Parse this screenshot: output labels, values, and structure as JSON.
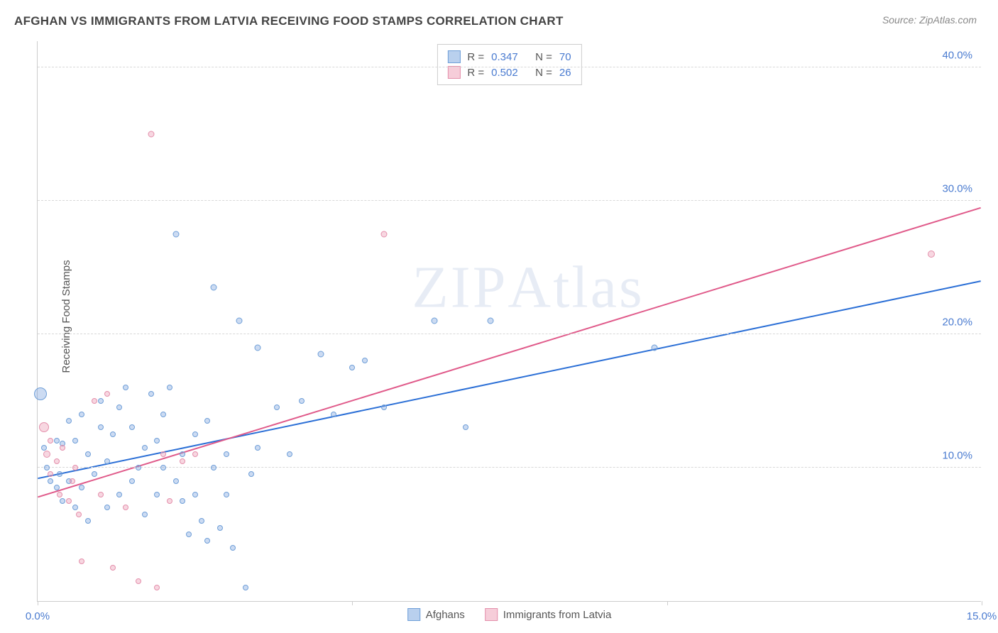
{
  "header": {
    "title": "AFGHAN VS IMMIGRANTS FROM LATVIA RECEIVING FOOD STAMPS CORRELATION CHART",
    "source": "Source: ZipAtlas.com"
  },
  "chart": {
    "type": "scatter",
    "ylabel": "Receiving Food Stamps",
    "watermark": "ZIPAtlas",
    "xlim": [
      0,
      15
    ],
    "ylim": [
      0,
      42
    ],
    "x_ticks": [
      0,
      5,
      10,
      15
    ],
    "x_tick_labels": [
      "0.0%",
      "",
      "",
      "15.0%"
    ],
    "y_ticks": [
      10,
      20,
      30,
      40
    ],
    "y_tick_labels": [
      "10.0%",
      "20.0%",
      "30.0%",
      "40.0%"
    ],
    "grid_color": "#d8d8d8",
    "axis_color": "#cccccc",
    "background_color": "#ffffff",
    "tick_label_color": "#4a7bd0",
    "series": [
      {
        "name": "Afghans",
        "color_fill": "rgba(120,160,220,0.38)",
        "color_stroke": "#6f9fd8",
        "swatch_fill": "#b9d0ee",
        "swatch_border": "#6f9fd8",
        "R": 0.347,
        "N": 70,
        "trend": {
          "x1": 0,
          "y1": 9.2,
          "x2": 15,
          "y2": 24.0,
          "color": "#2b6fd6",
          "width": 2
        },
        "points": [
          [
            0.05,
            15.5,
            18
          ],
          [
            0.1,
            11.5,
            8
          ],
          [
            0.15,
            10.0,
            8
          ],
          [
            0.2,
            9.0,
            8
          ],
          [
            0.3,
            12.0,
            8
          ],
          [
            0.3,
            8.5,
            8
          ],
          [
            0.35,
            9.5,
            8
          ],
          [
            0.4,
            11.8,
            8
          ],
          [
            0.4,
            7.5,
            8
          ],
          [
            0.5,
            13.5,
            8
          ],
          [
            0.5,
            9.0,
            8
          ],
          [
            0.6,
            12.0,
            8
          ],
          [
            0.6,
            7.0,
            8
          ],
          [
            0.7,
            14.0,
            8
          ],
          [
            0.7,
            8.5,
            8
          ],
          [
            0.8,
            11.0,
            8
          ],
          [
            0.8,
            6.0,
            8
          ],
          [
            0.9,
            9.5,
            8
          ],
          [
            1.0,
            13.0,
            8
          ],
          [
            1.0,
            15.0,
            8
          ],
          [
            1.1,
            10.5,
            8
          ],
          [
            1.1,
            7.0,
            8
          ],
          [
            1.2,
            12.5,
            8
          ],
          [
            1.3,
            8.0,
            8
          ],
          [
            1.3,
            14.5,
            8
          ],
          [
            1.4,
            16.0,
            8
          ],
          [
            1.5,
            9.0,
            8
          ],
          [
            1.5,
            13.0,
            8
          ],
          [
            1.6,
            10.0,
            8
          ],
          [
            1.7,
            11.5,
            8
          ],
          [
            1.7,
            6.5,
            8
          ],
          [
            1.8,
            15.5,
            8
          ],
          [
            1.9,
            12.0,
            8
          ],
          [
            1.9,
            8.0,
            8
          ],
          [
            2.0,
            10.0,
            8
          ],
          [
            2.0,
            14.0,
            8
          ],
          [
            2.1,
            16.0,
            8
          ],
          [
            2.2,
            9.0,
            8
          ],
          [
            2.2,
            27.5,
            9
          ],
          [
            2.3,
            7.5,
            8
          ],
          [
            2.3,
            11.0,
            8
          ],
          [
            2.4,
            5.0,
            8
          ],
          [
            2.5,
            12.5,
            8
          ],
          [
            2.5,
            8.0,
            8
          ],
          [
            2.6,
            6.0,
            8
          ],
          [
            2.7,
            13.5,
            8
          ],
          [
            2.7,
            4.5,
            8
          ],
          [
            2.8,
            10.0,
            8
          ],
          [
            2.8,
            23.5,
            9
          ],
          [
            2.9,
            5.5,
            8
          ],
          [
            3.0,
            8.0,
            8
          ],
          [
            3.0,
            11.0,
            8
          ],
          [
            3.1,
            4.0,
            8
          ],
          [
            3.2,
            21.0,
            9
          ],
          [
            3.3,
            1.0,
            8
          ],
          [
            3.4,
            9.5,
            8
          ],
          [
            3.5,
            11.5,
            8
          ],
          [
            3.5,
            19.0,
            9
          ],
          [
            3.8,
            14.5,
            8
          ],
          [
            4.0,
            11.0,
            8
          ],
          [
            4.2,
            15.0,
            8
          ],
          [
            4.5,
            18.5,
            9
          ],
          [
            4.7,
            14.0,
            8
          ],
          [
            5.0,
            17.5,
            8
          ],
          [
            5.2,
            18.0,
            8
          ],
          [
            5.5,
            14.5,
            8
          ],
          [
            6.3,
            21.0,
            9
          ],
          [
            6.8,
            13.0,
            8
          ],
          [
            7.2,
            21.0,
            9
          ],
          [
            9.8,
            19.0,
            9
          ]
        ]
      },
      {
        "name": "Immigrants from Latvia",
        "color_fill": "rgba(235,150,175,0.38)",
        "color_stroke": "#e48fab",
        "swatch_fill": "#f6cdd9",
        "swatch_border": "#e48fab",
        "R": 0.502,
        "N": 26,
        "trend": {
          "x1": 0,
          "y1": 7.8,
          "x2": 15,
          "y2": 29.5,
          "color": "#e05a8a",
          "width": 2
        },
        "points": [
          [
            0.1,
            13.0,
            14
          ],
          [
            0.15,
            11.0,
            10
          ],
          [
            0.2,
            9.5,
            8
          ],
          [
            0.2,
            12.0,
            8
          ],
          [
            0.3,
            10.5,
            8
          ],
          [
            0.35,
            8.0,
            8
          ],
          [
            0.4,
            11.5,
            8
          ],
          [
            0.5,
            7.5,
            8
          ],
          [
            0.55,
            9.0,
            8
          ],
          [
            0.6,
            10.0,
            8
          ],
          [
            0.65,
            6.5,
            8
          ],
          [
            0.7,
            3.0,
            8
          ],
          [
            0.9,
            15.0,
            8
          ],
          [
            1.0,
            8.0,
            8
          ],
          [
            1.1,
            15.5,
            8
          ],
          [
            1.2,
            2.5,
            8
          ],
          [
            1.4,
            7.0,
            8
          ],
          [
            1.6,
            1.5,
            8
          ],
          [
            1.8,
            35.0,
            9
          ],
          [
            1.9,
            1.0,
            8
          ],
          [
            2.0,
            11.0,
            8
          ],
          [
            2.1,
            7.5,
            8
          ],
          [
            2.3,
            10.5,
            8
          ],
          [
            2.5,
            11.0,
            8
          ],
          [
            5.5,
            27.5,
            9
          ],
          [
            14.2,
            26.0,
            10
          ]
        ]
      }
    ],
    "legend_top": {
      "r_label": "R =",
      "n_label": "N ="
    },
    "legend_bottom": [
      "Afghans",
      "Immigrants from Latvia"
    ]
  }
}
